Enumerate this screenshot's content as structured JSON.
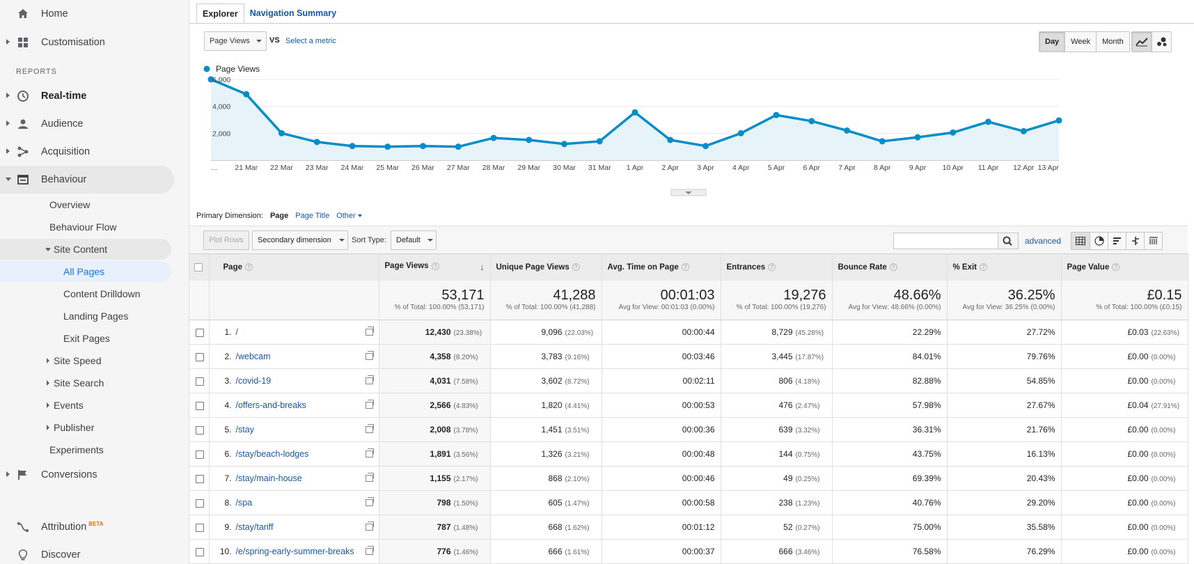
{
  "sidebar": {
    "top": [
      {
        "label": "Home",
        "icon": "home-icon"
      },
      {
        "label": "Customisation",
        "icon": "dashboard-icon"
      }
    ],
    "reports_label": "REPORTS",
    "reports": [
      {
        "label": "Real-time",
        "icon": "clock-icon"
      },
      {
        "label": "Audience",
        "icon": "person-icon"
      },
      {
        "label": "Acquisition",
        "icon": "acquisition-icon"
      },
      {
        "label": "Behaviour",
        "icon": "behaviour-icon"
      }
    ],
    "behaviour_items": {
      "overview": "Overview",
      "flow": "Behaviour Flow",
      "site_content": "Site Content",
      "all_pages": "All Pages",
      "content_drilldown": "Content Drilldown",
      "landing_pages": "Landing Pages",
      "exit_pages": "Exit Pages",
      "site_speed": "Site Speed",
      "site_search": "Site Search",
      "events": "Events",
      "publisher": "Publisher",
      "experiments": "Experiments"
    },
    "conversions": "Conversions",
    "attribution": "Attribution",
    "attribution_badge": "BETA",
    "discover": "Discover"
  },
  "tabs": [
    "Explorer",
    "Navigation Summary"
  ],
  "controls": {
    "metric": "Page Views",
    "vs": "VS",
    "select_metric": "Select a metric",
    "periods": [
      "Day",
      "Week",
      "Month"
    ],
    "active_period": "Day"
  },
  "chart_data": {
    "type": "line",
    "legend": "Page Views",
    "color": "#058dc7",
    "fill": "#e6f4fa",
    "x": [
      "...",
      "21 Mar",
      "22 Mar",
      "23 Mar",
      "24 Mar",
      "25 Mar",
      "26 Mar",
      "27 Mar",
      "28 Mar",
      "29 Mar",
      "30 Mar",
      "31 Mar",
      "1 Apr",
      "2 Apr",
      "3 Apr",
      "4 Apr",
      "5 Apr",
      "6 Apr",
      "7 Apr",
      "8 Apr",
      "9 Apr",
      "10 Apr",
      "11 Apr",
      "12 Apr",
      "13 Apr"
    ],
    "values": [
      6000,
      4900,
      2000,
      1350,
      1050,
      1000,
      1050,
      1000,
      1650,
      1500,
      1200,
      1400,
      3550,
      1500,
      1050,
      2000,
      3350,
      2900,
      2200,
      1400,
      1700,
      2050,
      2850,
      2150,
      2950
    ],
    "ylim": [
      0,
      6000
    ],
    "yticks": [
      "2,000",
      "4,000",
      "6,000"
    ],
    "grid": true
  },
  "primary_dimension": {
    "label": "Primary Dimension:",
    "options": [
      "Page",
      "Page Title",
      "Other"
    ]
  },
  "toolbar": {
    "plot_rows": "Plot Rows",
    "secondary_dimension": "Secondary dimension",
    "sort_type_label": "Sort Type:",
    "sort_type": "Default",
    "search_value": "",
    "advanced": "advanced"
  },
  "table": {
    "headers": [
      "Page",
      "Page Views",
      "Unique Page Views",
      "Avg. Time on Page",
      "Entrances",
      "Bounce Rate",
      "% Exit",
      "Page Value"
    ],
    "totals": [
      {
        "big": "53,171",
        "sub": "% of Total: 100.00% (53,171)"
      },
      {
        "big": "41,288",
        "sub": "% of Total: 100.00% (41,288)"
      },
      {
        "big": "00:01:03",
        "sub": "Avg for View: 00:01:03 (0.00%)"
      },
      {
        "big": "19,276",
        "sub": "% of Total: 100.00% (19,276)"
      },
      {
        "big": "48.66%",
        "sub": "Avg for View: 48.66% (0.00%)"
      },
      {
        "big": "36.25%",
        "sub": "Avg for View: 36.25% (0.00%)"
      },
      {
        "big": "£0.15",
        "sub": "% of Total: 100.00% (£0.15)"
      }
    ],
    "rows": [
      {
        "n": "1.",
        "page": "/",
        "pv": "12,430",
        "pv_pct": "(23.38%)",
        "upv": "9,096",
        "upv_pct": "(22.03%)",
        "time": "00:00:44",
        "ent": "8,729",
        "ent_pct": "(45.28%)",
        "bounce": "22.29%",
        "exit": "27.72%",
        "value": "£0.03",
        "value_pct": "(22.63%)"
      },
      {
        "n": "2.",
        "page": "/webcam",
        "pv": "4,358",
        "pv_pct": "(8.20%)",
        "upv": "3,783",
        "upv_pct": "(9.16%)",
        "time": "00:03:46",
        "ent": "3,445",
        "ent_pct": "(17.87%)",
        "bounce": "84.01%",
        "exit": "79.76%",
        "value": "£0.00",
        "value_pct": "(0.00%)"
      },
      {
        "n": "3.",
        "page": "/covid-19",
        "pv": "4,031",
        "pv_pct": "(7.58%)",
        "upv": "3,602",
        "upv_pct": "(8.72%)",
        "time": "00:02:11",
        "ent": "806",
        "ent_pct": "(4.18%)",
        "bounce": "82.88%",
        "exit": "54.85%",
        "value": "£0.00",
        "value_pct": "(0.00%)"
      },
      {
        "n": "4.",
        "page": "/offers-and-breaks",
        "pv": "2,566",
        "pv_pct": "(4.83%)",
        "upv": "1,820",
        "upv_pct": "(4.41%)",
        "time": "00:00:53",
        "ent": "476",
        "ent_pct": "(2.47%)",
        "bounce": "57.98%",
        "exit": "27.67%",
        "value": "£0.04",
        "value_pct": "(27.91%)"
      },
      {
        "n": "5.",
        "page": "/stay",
        "pv": "2,008",
        "pv_pct": "(3.78%)",
        "upv": "1,451",
        "upv_pct": "(3.51%)",
        "time": "00:00:36",
        "ent": "639",
        "ent_pct": "(3.32%)",
        "bounce": "36.31%",
        "exit": "21.76%",
        "value": "£0.00",
        "value_pct": "(0.00%)"
      },
      {
        "n": "6.",
        "page": "/stay/beach-lodges",
        "pv": "1,891",
        "pv_pct": "(3.56%)",
        "upv": "1,326",
        "upv_pct": "(3.21%)",
        "time": "00:00:48",
        "ent": "144",
        "ent_pct": "(0.75%)",
        "bounce": "43.75%",
        "exit": "16.13%",
        "value": "£0.00",
        "value_pct": "(0.00%)"
      },
      {
        "n": "7.",
        "page": "/stay/main-house",
        "pv": "1,155",
        "pv_pct": "(2.17%)",
        "upv": "868",
        "upv_pct": "(2.10%)",
        "time": "00:00:46",
        "ent": "49",
        "ent_pct": "(0.25%)",
        "bounce": "69.39%",
        "exit": "20.43%",
        "value": "£0.00",
        "value_pct": "(0.00%)"
      },
      {
        "n": "8.",
        "page": "/spa",
        "pv": "798",
        "pv_pct": "(1.50%)",
        "upv": "605",
        "upv_pct": "(1.47%)",
        "time": "00:00:58",
        "ent": "238",
        "ent_pct": "(1.23%)",
        "bounce": "40.76%",
        "exit": "29.20%",
        "value": "£0.00",
        "value_pct": "(0.00%)"
      },
      {
        "n": "9.",
        "page": "/stay/tariff",
        "pv": "787",
        "pv_pct": "(1.48%)",
        "upv": "668",
        "upv_pct": "(1.62%)",
        "time": "00:01:12",
        "ent": "52",
        "ent_pct": "(0.27%)",
        "bounce": "75.00%",
        "exit": "35.58%",
        "value": "£0.00",
        "value_pct": "(0.00%)"
      },
      {
        "n": "10.",
        "page": "/e/spring-early-summer-breaks",
        "pv": "776",
        "pv_pct": "(1.46%)",
        "upv": "666",
        "upv_pct": "(1.61%)",
        "time": "00:00:37",
        "ent": "666",
        "ent_pct": "(3.46%)",
        "bounce": "76.58%",
        "exit": "76.29%",
        "value": "£0.00",
        "value_pct": "(0.00%)"
      }
    ]
  }
}
